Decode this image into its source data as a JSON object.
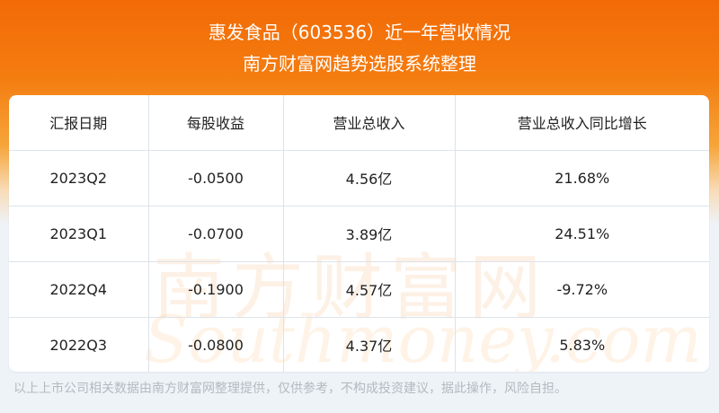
{
  "header": {
    "title": "惠发食品（603536）近一年营收情况",
    "subtitle": "南方财富网趋势选股系统整理"
  },
  "table": {
    "columns": [
      "汇报日期",
      "每股收益",
      "营业总收入",
      "营业总收入同比增长"
    ],
    "rows": [
      [
        "2023Q2",
        "-0.0500",
        "4.56亿",
        "21.68%"
      ],
      [
        "2023Q1",
        "-0.0700",
        "3.89亿",
        "24.51%"
      ],
      [
        "2022Q4",
        "-0.1900",
        "4.57亿",
        "-9.72%"
      ],
      [
        "2022Q3",
        "-0.0800",
        "4.37亿",
        "5.83%"
      ]
    ]
  },
  "watermark": {
    "cn": "南方财富网",
    "en": "Southmoney.com"
  },
  "footer": "以上上市公司相关数据由南方财富网整理提供，仅供参考，不构成投资建议，据此操作，风险自担。",
  "colors": {
    "banner": "#f26a06",
    "background": "#eef3f8"
  }
}
